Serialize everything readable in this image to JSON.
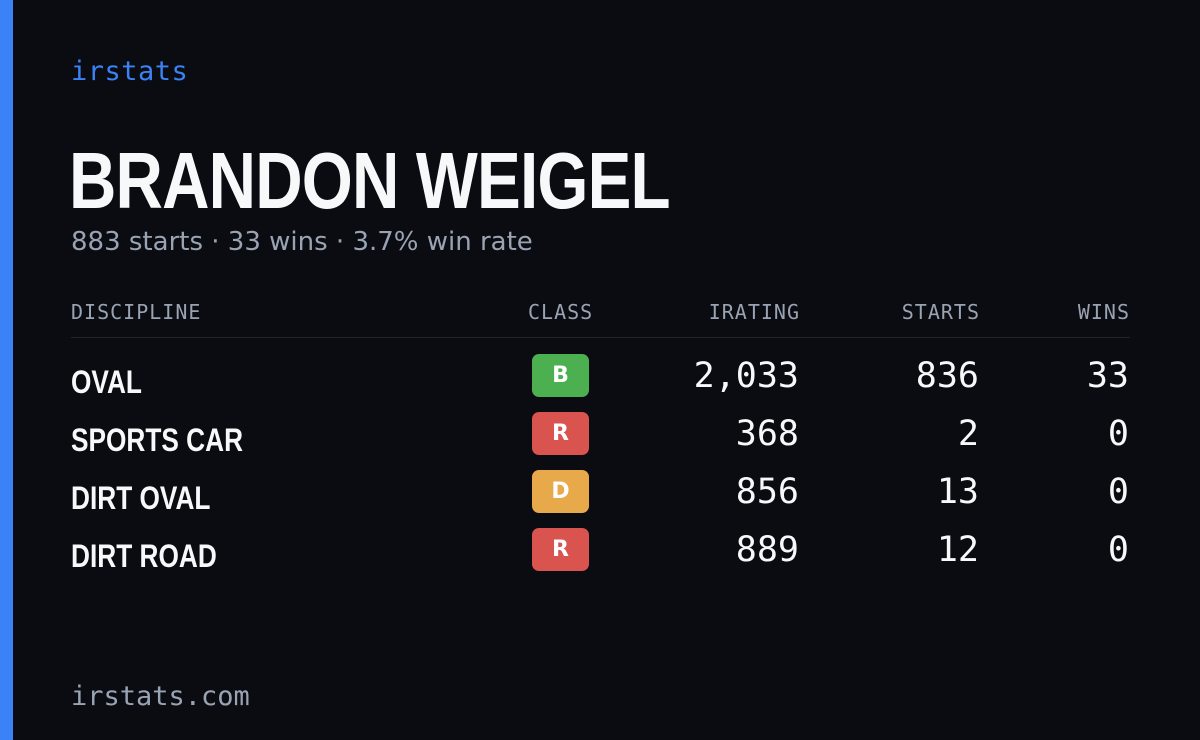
{
  "brand": "irstats",
  "driver": {
    "name": "BRANDON WEIGEL",
    "summary": "883 starts · 33 wins · 3.7% win rate"
  },
  "table": {
    "headers": {
      "discipline": "DISCIPLINE",
      "class": "CLASS",
      "irating": "IRATING",
      "starts": "STARTS",
      "wins": "WINS"
    },
    "rows": [
      {
        "discipline": "OVAL",
        "class": "B",
        "class_color": "#4caf50",
        "irating": "2,033",
        "starts": "836",
        "wins": "33"
      },
      {
        "discipline": "SPORTS CAR",
        "class": "R",
        "class_color": "#d9534f",
        "irating": "368",
        "starts": "2",
        "wins": "0"
      },
      {
        "discipline": "DIRT OVAL",
        "class": "D",
        "class_color": "#e8a94a",
        "irating": "856",
        "starts": "13",
        "wins": "0"
      },
      {
        "discipline": "DIRT ROAD",
        "class": "R",
        "class_color": "#d9534f",
        "irating": "889",
        "starts": "12",
        "wins": "0"
      }
    ]
  },
  "footer": {
    "url": "irstats.com"
  },
  "colors": {
    "accent": "#3b82f6",
    "background": "#0a0c12"
  }
}
